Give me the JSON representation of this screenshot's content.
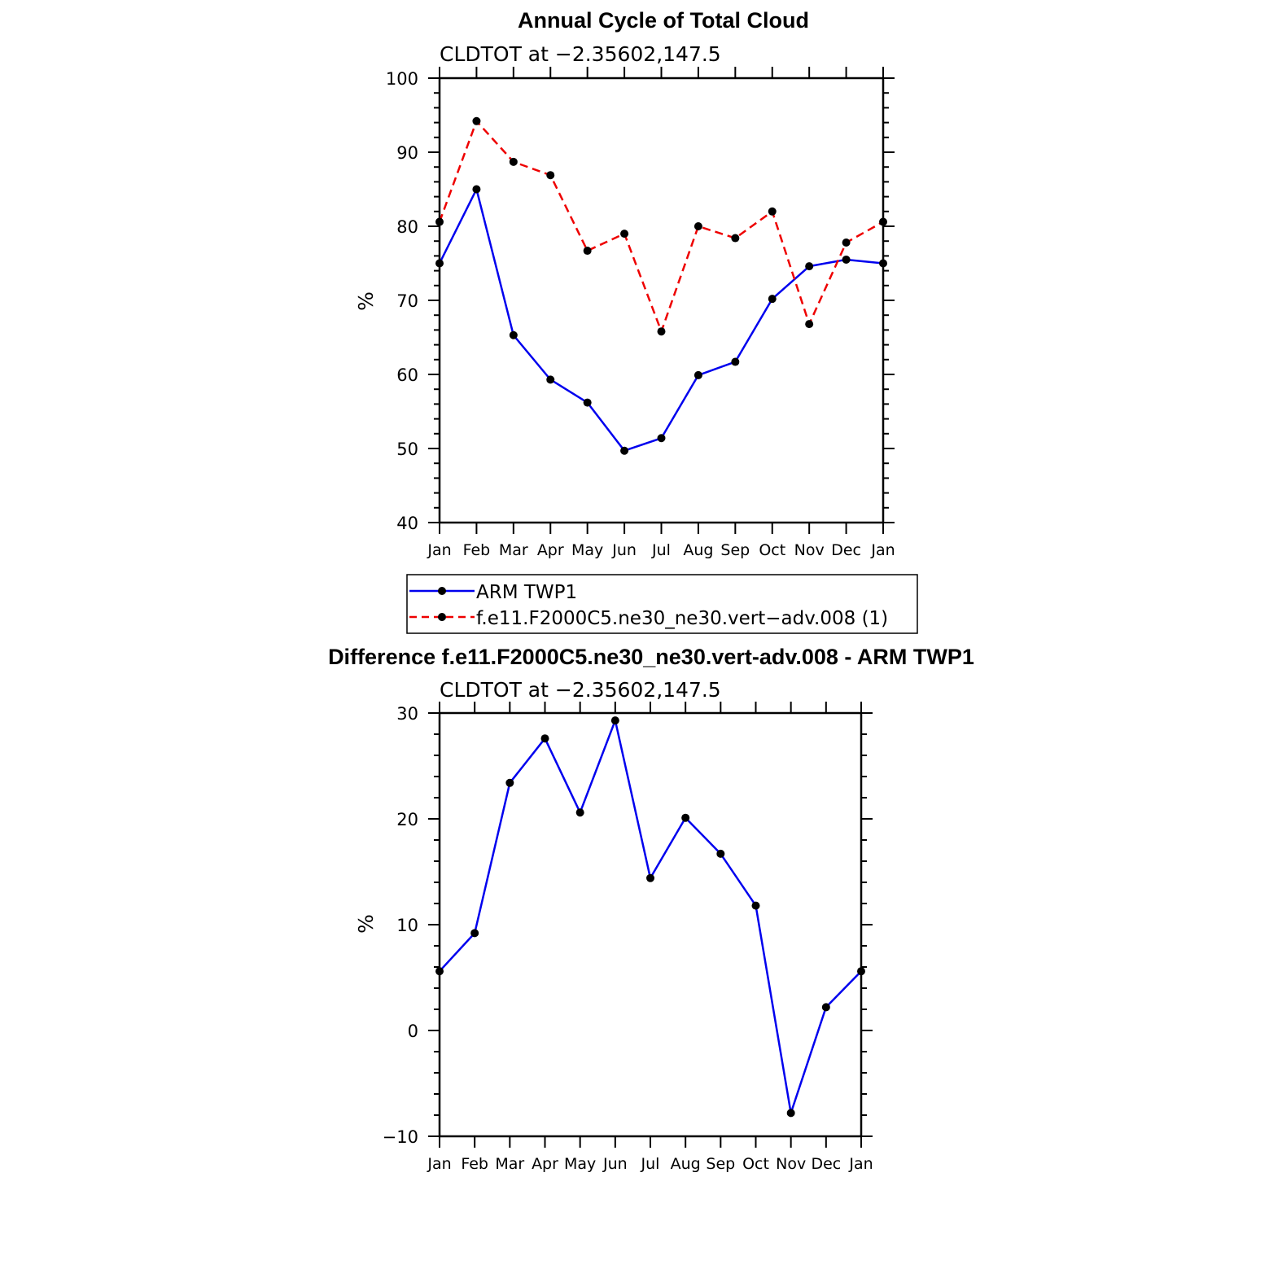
{
  "chart_data": [
    {
      "type": "line",
      "title": "Annual Cycle of Total Cloud",
      "subtitle": "CLDTOT at −2.35602,147.5",
      "xlabel": "",
      "ylabel": "%",
      "categories": [
        "Jan",
        "Feb",
        "Mar",
        "Apr",
        "May",
        "Jun",
        "Jul",
        "Aug",
        "Sep",
        "Oct",
        "Nov",
        "Dec",
        "Jan"
      ],
      "ylim": [
        40,
        100
      ],
      "yticks": [
        "40",
        "50",
        "60",
        "70",
        "80",
        "90",
        "100"
      ],
      "series": [
        {
          "name": "ARM TWP1",
          "color": "#0000ee",
          "dash": "solid",
          "values": [
            75.0,
            85.0,
            65.3,
            59.3,
            56.2,
            49.7,
            51.4,
            59.9,
            61.7,
            70.2,
            74.6,
            75.5,
            75.0
          ]
        },
        {
          "name": "f.e11.F2000C5.ne30_ne30.vert−adv.008 (1)",
          "color": "#ee0000",
          "dash": "dashed",
          "values": [
            80.6,
            94.2,
            88.7,
            86.9,
            76.7,
            79.0,
            65.8,
            80.0,
            78.4,
            82.0,
            66.8,
            77.8,
            80.6
          ]
        }
      ],
      "legend": {
        "position": "bottom",
        "items": [
          "ARM TWP1",
          "f.e11.F2000C5.ne30_ne30.vert−adv.008 (1)"
        ]
      }
    },
    {
      "type": "line",
      "title": "Difference f.e11.F2000C5.ne30_ne30.vert-adv.008 - ARM TWP1",
      "subtitle": "CLDTOT at −2.35602,147.5",
      "xlabel": "",
      "ylabel": "%",
      "categories": [
        "Jan",
        "Feb",
        "Mar",
        "Apr",
        "May",
        "Jun",
        "Jul",
        "Aug",
        "Sep",
        "Oct",
        "Nov",
        "Dec",
        "Jan"
      ],
      "ylim": [
        -10,
        30
      ],
      "yticks": [
        "−10",
        "0",
        "10",
        "20",
        "30"
      ],
      "series": [
        {
          "name": "Difference",
          "color": "#0000ee",
          "dash": "solid",
          "values": [
            5.6,
            9.2,
            23.4,
            27.6,
            20.6,
            29.3,
            14.4,
            20.1,
            16.7,
            11.8,
            -7.8,
            2.2,
            5.6
          ]
        }
      ]
    }
  ]
}
